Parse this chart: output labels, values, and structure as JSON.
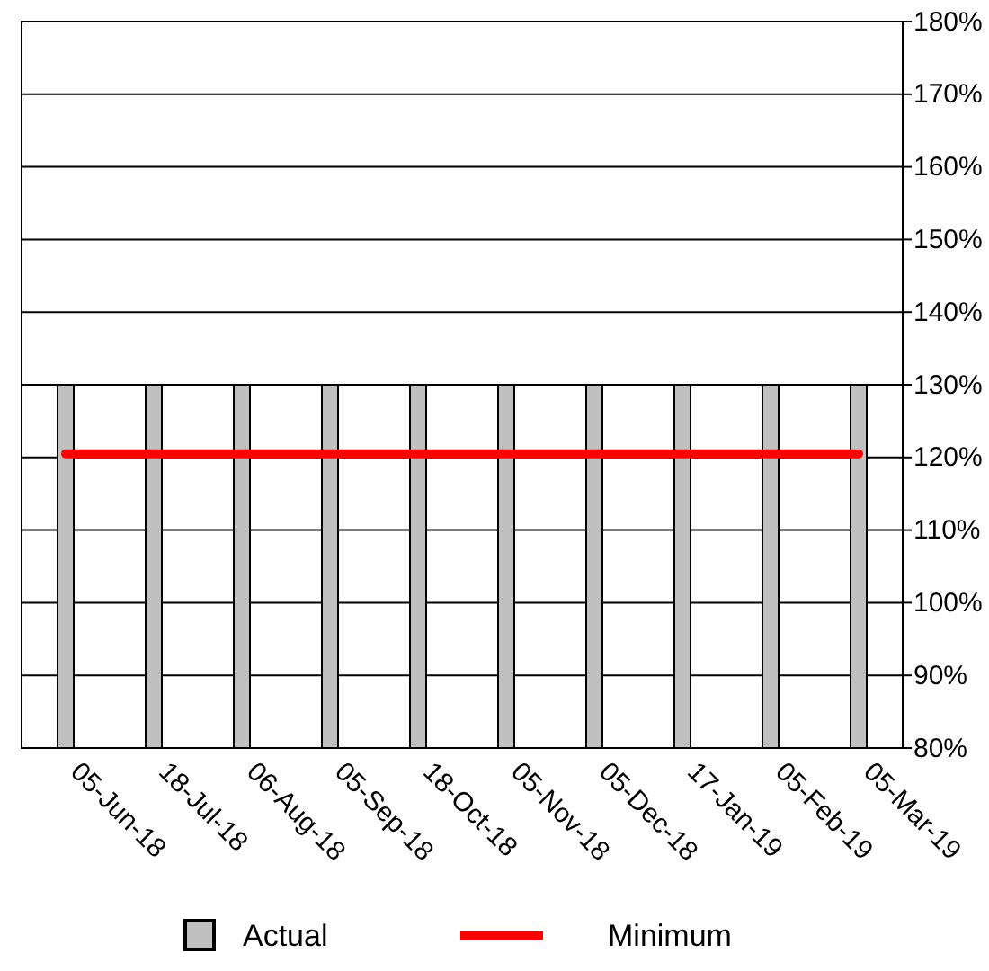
{
  "chart_data": {
    "type": "bar",
    "categories": [
      "05-Jun-18",
      "18-Jul-18",
      "06-Aug-18",
      "05-Sep-18",
      "18-Oct-18",
      "05-Nov-18",
      "05-Dec-18",
      "17-Jan-19",
      "05-Feb-19",
      "05-Mar-19"
    ],
    "series": [
      {
        "name": "Actual",
        "color": "#c0c0c0",
        "values": [
          130,
          130,
          130,
          130,
          130,
          130,
          130,
          130,
          130,
          130
        ]
      },
      {
        "name": "Minimum",
        "type": "line",
        "color": "#ff0000",
        "values": [
          120.5,
          120.5,
          120.5,
          120.5,
          120.5,
          120.5,
          120.5,
          120.5,
          120.5,
          120.5
        ]
      }
    ],
    "ylim": [
      80,
      180
    ],
    "yticks": [
      {
        "value": 80,
        "label": "80%"
      },
      {
        "value": 90,
        "label": "90%"
      },
      {
        "value": 100,
        "label": "100%"
      },
      {
        "value": 110,
        "label": "110%"
      },
      {
        "value": 120,
        "label": "120%"
      },
      {
        "value": 130,
        "label": "130%"
      },
      {
        "value": 140,
        "label": "140%"
      },
      {
        "value": 150,
        "label": "150%"
      },
      {
        "value": 160,
        "label": "160%"
      },
      {
        "value": 170,
        "label": "170%"
      },
      {
        "value": 180,
        "label": "180%"
      }
    ],
    "grid": "y",
    "legend": "bottom"
  }
}
